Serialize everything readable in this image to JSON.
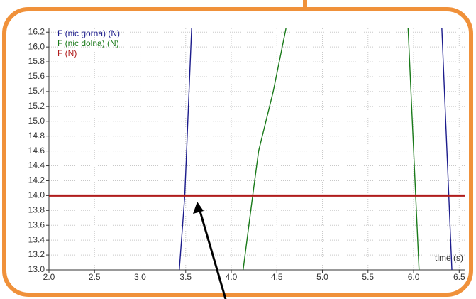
{
  "chart_data": {
    "type": "line",
    "x_label": "time (s)",
    "xlim": [
      2.0,
      6.56
    ],
    "ylim": [
      13.0,
      16.25
    ],
    "xticks": [
      {
        "value": 2,
        "label": "2.0"
      },
      2.5,
      {
        "value": 3,
        "label": "3.0"
      },
      3.5,
      {
        "value": 4,
        "label": "4.0"
      },
      4.5,
      {
        "value": 5,
        "label": "5.0"
      },
      5.5,
      {
        "value": 6,
        "label": "6.0"
      },
      6.5
    ],
    "yticks": [
      {
        "value": 13,
        "label": "13.0"
      },
      13.2,
      13.4,
      13.6,
      13.8,
      {
        "value": 14,
        "label": "14.0"
      },
      14.2,
      14.4,
      14.6,
      14.8,
      {
        "value": 15,
        "label": "15.0"
      },
      15.2,
      15.4,
      15.6,
      15.8,
      {
        "value": 16,
        "label": "16.0"
      },
      16.2
    ],
    "grid": true,
    "legend": "upper left",
    "series": [
      {
        "name": "F (nic gorna) (N)",
        "color": "#1c1c8c",
        "x": [
          3.43,
          3.49,
          3.565,
          null,
          6.31,
          6.42
        ],
        "values": [
          13.0,
          14.0,
          16.25,
          null,
          16.25,
          13.0
        ]
      },
      {
        "name": "F (nic dolna) (N)",
        "color": "#1a7a1a",
        "x": [
          4.13,
          4.235,
          4.3,
          4.46,
          4.6,
          null,
          5.94,
          6.06
        ],
        "values": [
          13.0,
          14.0,
          14.6,
          15.4,
          16.25,
          null,
          16.25,
          13.0
        ]
      },
      {
        "name": "F (N)",
        "color": "#b01c1c",
        "x": [
          2.0,
          6.56
        ],
        "values": [
          14.0,
          14.0
        ]
      }
    ]
  }
}
